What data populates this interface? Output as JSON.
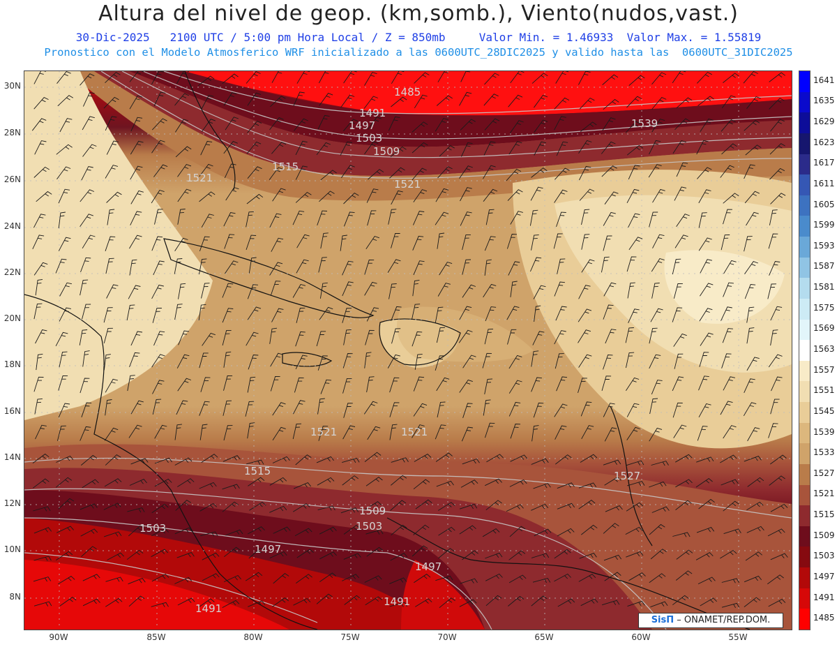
{
  "header": {
    "title": "Altura del nivel de geop. (km,somb.), Viento(nudos,vast.)",
    "subtitle": "30-Dic-2025   2100 UTC / 5:00 pm Hora Local / Z = 850mb     Valor Min. = 1.46933  Valor Max. = 1.55819",
    "model_line": "Pronostico con el Modelo Atmosferico WRF inicializado a las 0600UTC_28DIC2025 y valido hasta las  0600UTC_31DIC2025"
  },
  "axes": {
    "lat_labels": [
      "30N",
      "28N",
      "26N",
      "24N",
      "22N",
      "20N",
      "18N",
      "16N",
      "14N",
      "12N",
      "10N",
      "8N"
    ],
    "lon_labels": [
      "90W",
      "85W",
      "80W",
      "75W",
      "70W",
      "65W",
      "60W",
      "55W"
    ]
  },
  "colorbar": {
    "levels": [
      "1641",
      "1635",
      "1629",
      "1623",
      "1617",
      "1611",
      "1605",
      "1599",
      "1593",
      "1587",
      "1581",
      "1575",
      "1569",
      "1563",
      "1557",
      "1551",
      "1545",
      "1539",
      "1533",
      "1527",
      "1521",
      "1515",
      "1509",
      "1503",
      "1497",
      "1491",
      "1485"
    ],
    "colors": [
      "#0000ff",
      "#0a0acc",
      "#0d0d99",
      "#16166e",
      "#2b2b8a",
      "#3557b4",
      "#3d72c0",
      "#4a8bcc",
      "#6aa8d8",
      "#90c4e4",
      "#b4dcee",
      "#cdebf5",
      "#e2f5fa",
      "#ffffff",
      "#f8ebc8",
      "#f1deb2",
      "#e9cd98",
      "#dcb77d",
      "#cfa36a",
      "#b97c4a",
      "#a8543b",
      "#8e2a2e",
      "#6e0d1c",
      "#860a10",
      "#b20909",
      "#d60808",
      "#ff0000"
    ]
  },
  "contour_labels": [
    "1485",
    "1491",
    "1497",
    "1503",
    "1509",
    "1515",
    "1521",
    "1521",
    "1521",
    "1521",
    "1509",
    "1503",
    "1515",
    "1503",
    "1497",
    "1497",
    "1491",
    "1491",
    "1539",
    "1527"
  ],
  "credit": {
    "brand": "SisΠ",
    "org": "– ONAMET/REP.DOM."
  }
}
